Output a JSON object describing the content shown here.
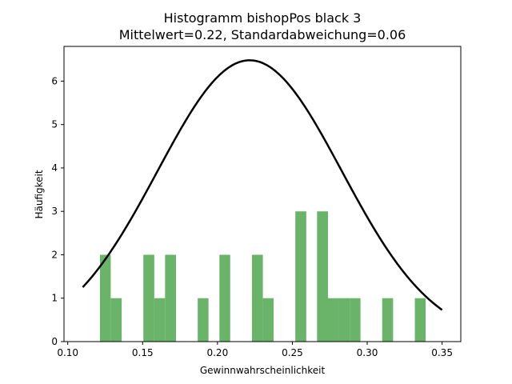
{
  "chart_data": {
    "type": "bar",
    "title": "Histogramm bishopPos black 3",
    "subtitle": "Mittelwert=0.22, Standardabweichung=0.06",
    "xlabel": "Gewinnwahrscheinlichkeit",
    "ylabel": "Häufigkeit",
    "xlim": [
      0.0975,
      0.3625
    ],
    "ylim": [
      0,
      6.8
    ],
    "xticks": [
      0.1,
      0.15,
      0.2,
      0.25,
      0.3,
      0.35
    ],
    "xtick_labels": [
      "0.10",
      "0.15",
      "0.20",
      "0.25",
      "0.30",
      "0.35"
    ],
    "yticks": [
      0,
      1,
      2,
      3,
      4,
      5,
      6
    ],
    "ytick_labels": [
      "0",
      "1",
      "2",
      "3",
      "4",
      "5",
      "6"
    ],
    "grid": false,
    "bar_color": "#6ab46a",
    "curve_color": "#000000",
    "bins": [
      {
        "x0": 0.1215,
        "x1": 0.1287,
        "count": 2
      },
      {
        "x0": 0.1287,
        "x1": 0.136,
        "count": 1
      },
      {
        "x0": 0.1505,
        "x1": 0.1578,
        "count": 2
      },
      {
        "x0": 0.1578,
        "x1": 0.165,
        "count": 1
      },
      {
        "x0": 0.165,
        "x1": 0.1723,
        "count": 2
      },
      {
        "x0": 0.1868,
        "x1": 0.194,
        "count": 1
      },
      {
        "x0": 0.2013,
        "x1": 0.2085,
        "count": 2
      },
      {
        "x0": 0.223,
        "x1": 0.2303,
        "count": 2
      },
      {
        "x0": 0.2303,
        "x1": 0.2375,
        "count": 1
      },
      {
        "x0": 0.252,
        "x1": 0.2593,
        "count": 3
      },
      {
        "x0": 0.2665,
        "x1": 0.2738,
        "count": 3
      },
      {
        "x0": 0.2738,
        "x1": 0.281,
        "count": 1
      },
      {
        "x0": 0.281,
        "x1": 0.2883,
        "count": 1
      },
      {
        "x0": 0.2883,
        "x1": 0.2955,
        "count": 1
      },
      {
        "x0": 0.31,
        "x1": 0.3173,
        "count": 1
      },
      {
        "x0": 0.3318,
        "x1": 0.339,
        "count": 1
      }
    ],
    "normal_curve": {
      "mean": 0.2215,
      "std": 0.0615,
      "peak": 6.48,
      "x_range": [
        0.11,
        0.35
      ]
    }
  }
}
